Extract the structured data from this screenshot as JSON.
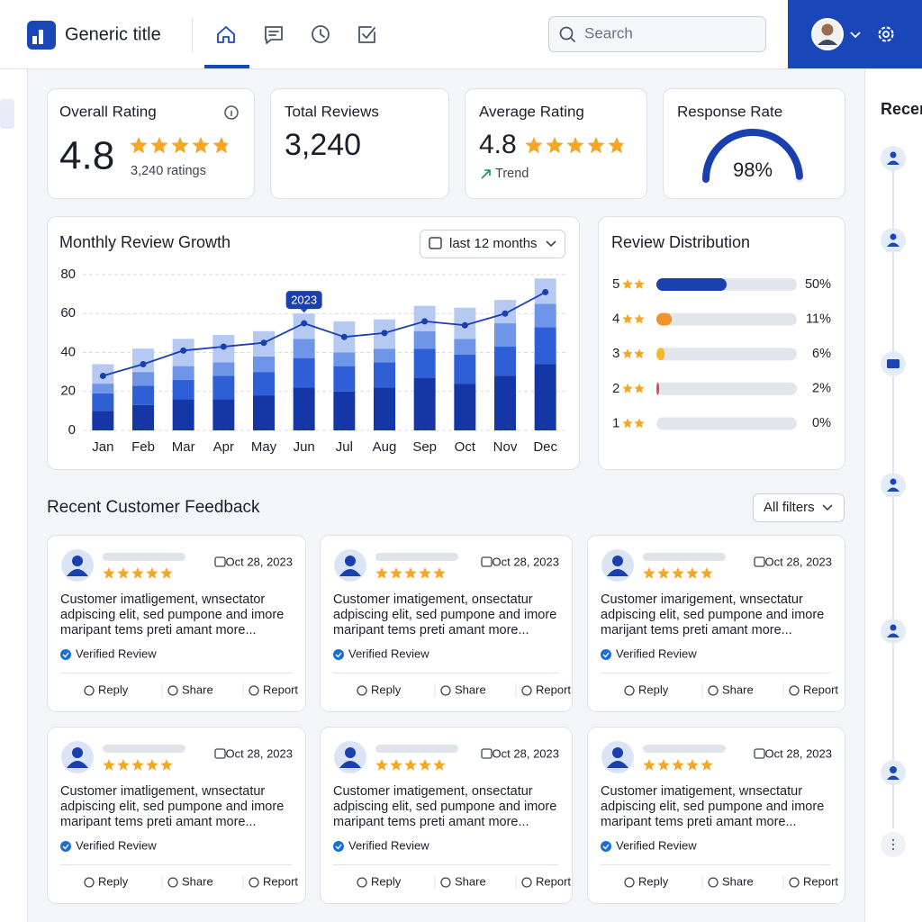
{
  "header": {
    "title": "Generic title",
    "search_placeholder": "Search"
  },
  "kpis": [
    {
      "label": "Overall Rating",
      "value": 4.8,
      "sub": "3,240 ratings"
    },
    {
      "label": "Total Reviews",
      "value": "3,240"
    },
    {
      "label": "Average Rating",
      "value": 4.8,
      "sub": "Trend"
    },
    {
      "label": "Response Rate",
      "value": 98,
      "value_label": "98%"
    }
  ],
  "chart_data": [
    {
      "type": "bar",
      "stacked": true,
      "title": "Monthly Review Growth",
      "range_selector": "last 12 months",
      "categories": [
        "Jan",
        "Feb",
        "Mar",
        "Apr",
        "May",
        "Jun",
        "Jul",
        "Aug",
        "Sep",
        "Oct",
        "Nov",
        "Dec"
      ],
      "series": [
        {
          "color": "#1537a6",
          "values": [
            10,
            13,
            16,
            16,
            18,
            22,
            20,
            22,
            27,
            24,
            28,
            34
          ]
        },
        {
          "color": "#2f5fd6",
          "values": [
            9,
            10,
            10,
            12,
            12,
            15,
            13,
            13,
            15,
            15,
            15,
            19
          ]
        },
        {
          "color": "#6f95e8",
          "values": [
            5,
            7,
            7,
            7,
            8,
            10,
            7,
            7,
            9,
            8,
            12,
            12
          ]
        },
        {
          "color": "#b5c9f3",
          "values": [
            10,
            12,
            14,
            14,
            13,
            13,
            16,
            15,
            13,
            16,
            12,
            13
          ]
        },
        {
          "type": "line",
          "color": "#1a3fae",
          "values": [
            28,
            34,
            41,
            43,
            45,
            55,
            48,
            50,
            56,
            54,
            60,
            71
          ]
        }
      ],
      "ylim": [
        0,
        80
      ],
      "yticks": [
        0,
        20,
        40,
        60,
        80
      ],
      "grid": true,
      "annotations": [
        {
          "text": "2023",
          "x": "Jun"
        }
      ]
    },
    {
      "type": "bar",
      "orientation": "horizontal",
      "title": "Review Distribution",
      "categories": [
        "5",
        "4",
        "3",
        "2",
        "1"
      ],
      "values": [
        50,
        11,
        6,
        2,
        0
      ],
      "value_labels": [
        "50%",
        "11%",
        "6%",
        "2%",
        "0%"
      ],
      "colors": [
        "#1a3fae",
        "#f0932b",
        "#f5b829",
        "#e5484d",
        "#e5484d"
      ],
      "xlim": [
        0,
        100
      ]
    }
  ],
  "feedback": {
    "title": "Recent Customer Feedback",
    "filter": "All filters",
    "badge": "Verified Review",
    "actions": [
      "Reply",
      "Share",
      "Report"
    ],
    "cards": [
      {
        "date": "Oct 28, 2023",
        "text": [
          "Customer imatligement, wnsectator",
          "adpiscing elit, sed pumpone and imore",
          "maripant tems preti amant more..."
        ]
      },
      {
        "date": "Oct 28, 2023",
        "text": [
          "Customer imatigement, onsectatur",
          "adpiscing elit, sed pumpone and imore",
          "maripant tems preti amant more..."
        ]
      },
      {
        "date": "Oct 28, 2023",
        "text": [
          "Customer imarigement, wnsectatur",
          "adpiscing elit, sed pumpone and imore",
          "marijant tems preti amant more..."
        ]
      },
      {
        "date": "Oct 28, 2023",
        "text": [
          "Customer imatligement, wnsectatur",
          "adpiscing elit, sed pumpone and imore",
          "maripant tems preti amant more..."
        ]
      },
      {
        "date": "Oct 28, 2023",
        "text": [
          "Customer imatigement, onsectatur",
          "adpiscing elit, sed pumpone and imore",
          "maripant tems preti amant more..."
        ]
      },
      {
        "date": "Oct 28, 2023",
        "text": [
          "Customer imatigement, wnsectatur",
          "adpiscing elit, sed pumpone and imore",
          "maripant tems preti amant more..."
        ]
      }
    ]
  },
  "sidebar": {
    "title": "Recent"
  }
}
